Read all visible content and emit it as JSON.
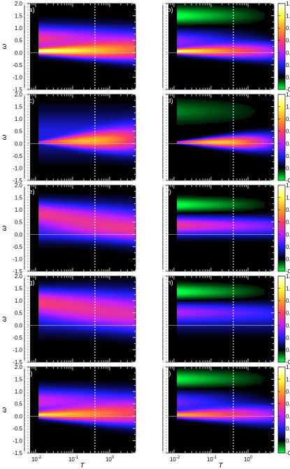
{
  "chart_data": {
    "type": "heatmap",
    "layout": "5 rows x 2 columns",
    "panels": [
      "(a)",
      "(b)",
      "(c)",
      "(d)",
      "(e)",
      "(f)",
      "(g)",
      "(h)",
      "(i)",
      "(j)"
    ],
    "xlabel": "T",
    "ylabel": "ω",
    "x_scale": "log",
    "x_tick_labels": [
      "10-2",
      "10-1",
      "100"
    ],
    "xlim": [
      0.005,
      5
    ],
    "ylim": [
      -1.5,
      2.0
    ],
    "y_tick_labels": [
      "2.0",
      "1.5",
      "1.0",
      "0.5",
      "0.0",
      "-0.5",
      "-1.0",
      "-1.5"
    ],
    "colorbar_tick_labels": [
      "1.2",
      "1.0",
      "0.8",
      "0.6",
      "0.4",
      "0.2",
      "0.0",
      "-0.2"
    ],
    "colorbar_range": [
      -0.2,
      1.2
    ],
    "colorscale": [
      "#00ff40",
      "#000000",
      "#2020ff",
      "#c020ff",
      "#ff4060",
      "#ffa020",
      "#ffff40",
      "#ffffff"
    ],
    "dashed_lines_T": [
      0.0062,
      0.4
    ],
    "hline_omega": 0.0
  }
}
